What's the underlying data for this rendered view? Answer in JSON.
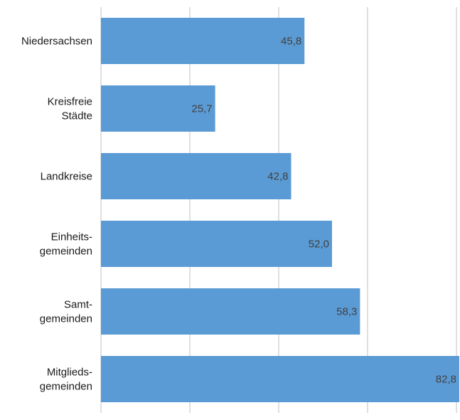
{
  "chart_data": {
    "type": "bar",
    "orientation": "horizontal",
    "categories": [
      [
        "Niedersachsen"
      ],
      [
        "Kreisfreie",
        "Städte"
      ],
      [
        "Landkreise"
      ],
      [
        "Einheits-",
        "gemeinden"
      ],
      [
        "Samt-",
        "gemeinden"
      ],
      [
        "Mitglieds-",
        "gemeinden"
      ]
    ],
    "values": [
      45.8,
      25.7,
      42.8,
      52.0,
      58.3,
      82.8
    ],
    "value_labels": [
      "45,8",
      "25,7",
      "42,8",
      "52,0",
      "58,3",
      "82,8"
    ],
    "xlim": [
      0,
      80
    ],
    "grid": true,
    "legend": "none",
    "colors": {
      "bar": "#5b9bd5",
      "grid": "#d9d9d9"
    }
  }
}
